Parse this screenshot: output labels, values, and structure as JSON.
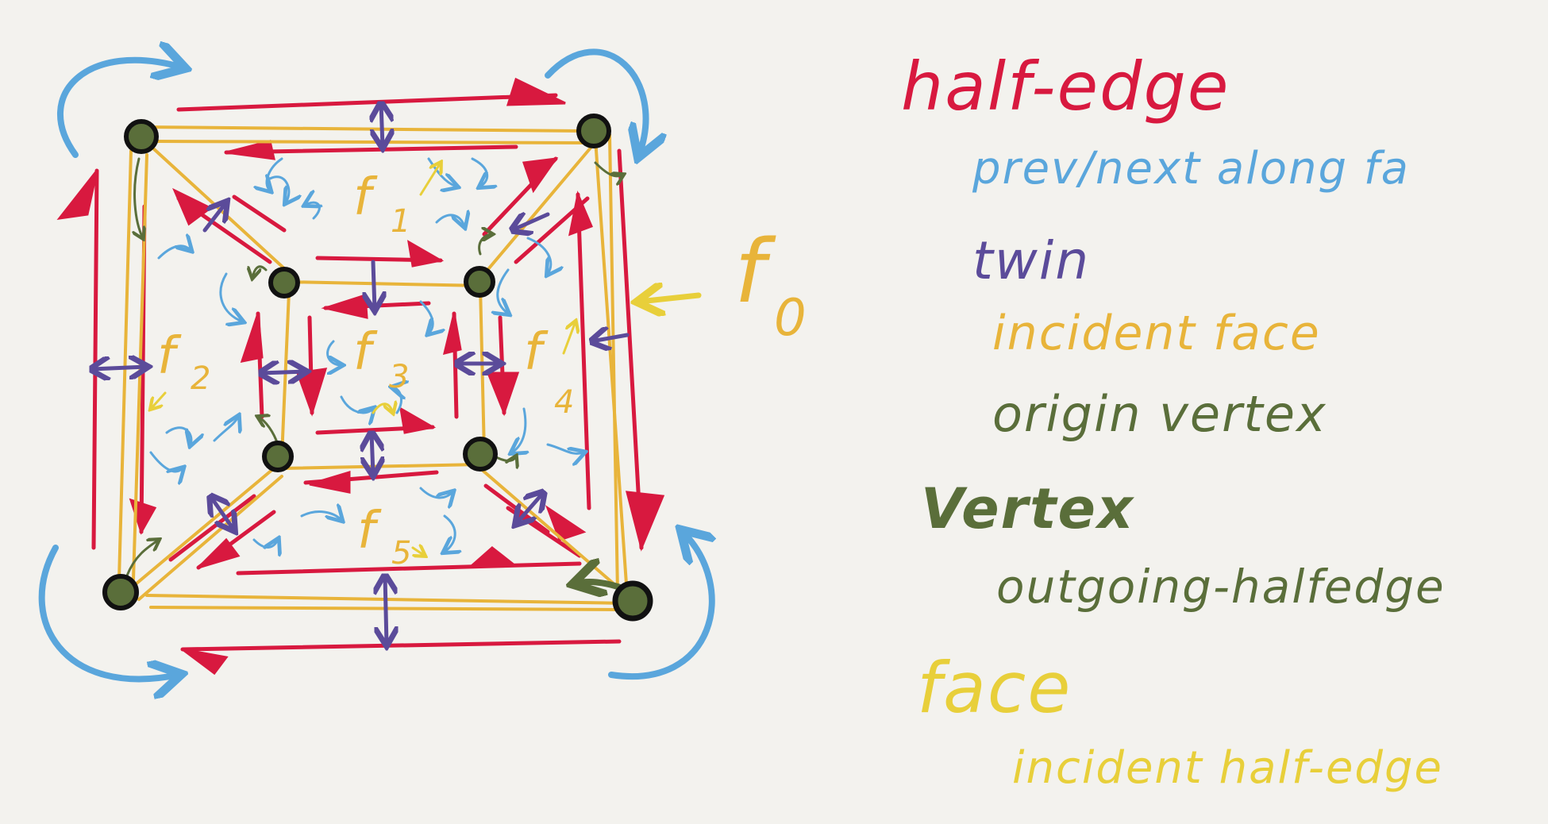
{
  "colors": {
    "background": "#f3f2ee",
    "half_edge": "#d8193f",
    "prev_next": "#5aa6dc",
    "twin": "#5b4b9a",
    "incident_face": "#e8b43a",
    "origin_vertex": "#5a6e3a",
    "vertex": "#5a6e3a",
    "face": "#e8cf3a"
  },
  "icons": {
    "vertex": "vertex-dot-icon",
    "twin": "double-arrow-icon",
    "prev_next": "curved-arrow-icon"
  },
  "faces": {
    "f0": {
      "letter": "f",
      "sub": "0"
    },
    "f1": {
      "letter": "f",
      "sub": "1"
    },
    "f2": {
      "letter": "f",
      "sub": "2"
    },
    "f3": {
      "letter": "f",
      "sub": "3"
    },
    "f4": {
      "letter": "f",
      "sub": "4"
    },
    "f5": {
      "letter": "f",
      "sub": "5"
    }
  },
  "legend": {
    "half_edge": {
      "title": "half-edge",
      "prev_next": "prev/next along fa",
      "twin": "twin",
      "incident_face": "incident face",
      "origin_vertex": "origin vertex"
    },
    "vertex": {
      "title": "Vertex",
      "outgoing": "outgoing-halfedge"
    },
    "face": {
      "title": "face",
      "incident": "incident half-edge"
    }
  }
}
